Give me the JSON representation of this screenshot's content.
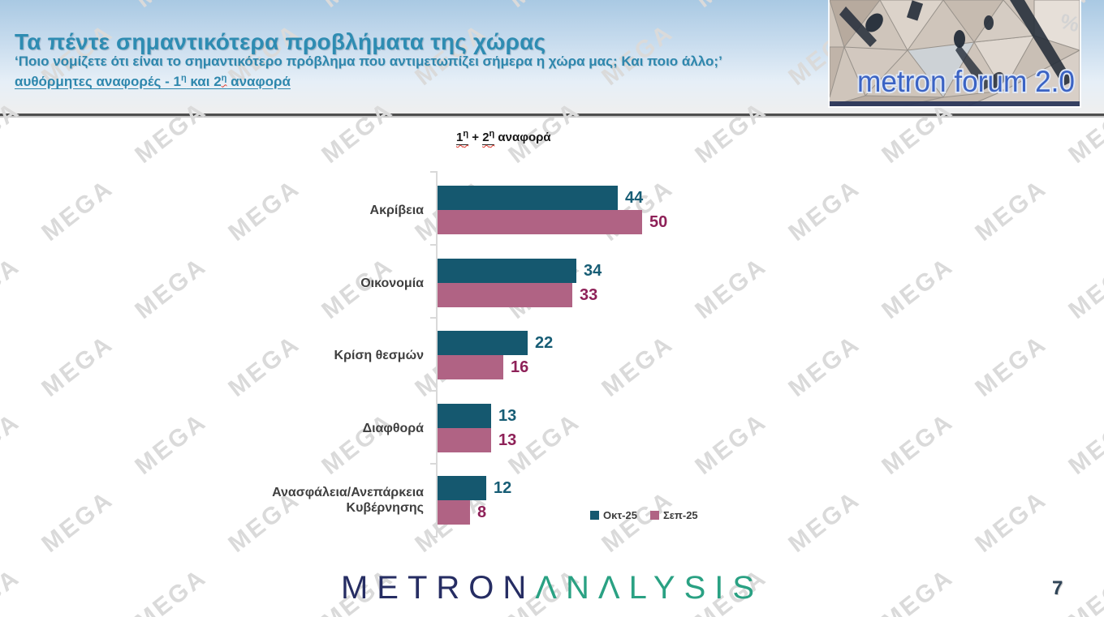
{
  "banner": {
    "title": "Τα πέντε σημαντικότερα προβλήματα της χώρας",
    "subtitle": "‘Ποιο νομίζετε ότι είναι το σημαντικότερο πρόβλημα που αντιμετωπίζει σήμερα η χώρα μας; Και ποιο άλλο;’",
    "line3": {
      "prefix": "αυθόρμητες αναφορές - 1",
      "sup1": "η",
      "mid": " και 2",
      "sup2": "η",
      "suffix": " αναφορά"
    }
  },
  "logo_badge": {
    "text": "metron forum 2.0",
    "percent": "%"
  },
  "chart_heading": {
    "n1": "1",
    "sup1": "η",
    "plus": " + ",
    "n2": "2",
    "sup2": "η",
    "rest": " αναφορά"
  },
  "chart_data": {
    "type": "bar",
    "orientation": "horizontal",
    "title": "1η + 2η αναφορά",
    "categories": [
      "Ακρίβεια",
      "Οικονομία",
      "Κρίση θεσμών",
      "Διαφθορά",
      "Ανασφάλεια/Ανεπάρκεια Κυβέρνησης"
    ],
    "categories_display": [
      [
        "Ακρίβεια"
      ],
      [
        "Οικονομία"
      ],
      [
        "Κρίση θεσμών"
      ],
      [
        "Διαφθορά"
      ],
      [
        "Ανασφάλεια/Ανεπάρκεια",
        "Κυβέρνησης"
      ]
    ],
    "series": [
      {
        "name": "Οκτ-25",
        "color": "#15586f",
        "label_color": "#175d75",
        "values": [
          44,
          34,
          22,
          13,
          12
        ]
      },
      {
        "name": "Σεπ-25",
        "color": "#b06384",
        "label_color": "#8e2158",
        "values": [
          50,
          33,
          16,
          13,
          8
        ]
      }
    ],
    "xlim": [
      0,
      50
    ],
    "value_labels": true,
    "grid": false,
    "legend_position": "bottom-right"
  },
  "footer": {
    "brand_metron": "METRON",
    "brand_analysis": "ΛNΛLYSIS",
    "page_number": "7"
  },
  "watermark": {
    "text": "MEGA"
  }
}
